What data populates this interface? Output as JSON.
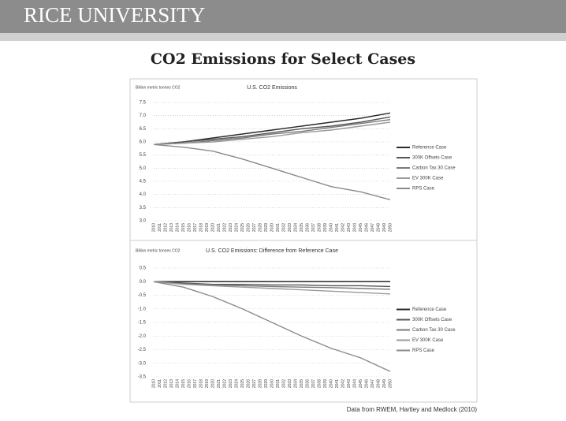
{
  "header": {
    "title": "RICE UNIVERSITY"
  },
  "title": "CO2 Emissions for Select Cases",
  "source": "Data from RWEM, Hartley and Medlock (2010)",
  "chart_data": [
    {
      "type": "line",
      "title": "U.S. CO2 Emissions",
      "y_label": "Billion metric tonnes CO2",
      "x": [
        2010,
        2015,
        2020,
        2025,
        2030,
        2035,
        2040,
        2045,
        2050
      ],
      "xlim": [
        2010,
        2050
      ],
      "xticks": [
        2010,
        2011,
        2012,
        2013,
        2014,
        2015,
        2016,
        2017,
        2018,
        2019,
        2020,
        2021,
        2022,
        2023,
        2024,
        2025,
        2026,
        2027,
        2028,
        2029,
        2030,
        2031,
        2032,
        2033,
        2034,
        2035,
        2036,
        2037,
        2038,
        2039,
        2040,
        2041,
        2042,
        2043,
        2044,
        2045,
        2046,
        2047,
        2048,
        2049,
        2050
      ],
      "ylim": [
        3.0,
        7.5
      ],
      "yticks": [
        {
          "value": 3,
          "label": "3.0"
        },
        3.5,
        {
          "value": 4,
          "label": "4.0"
        },
        4.5,
        {
          "value": 5,
          "label": "5.0"
        },
        5.5,
        {
          "value": 6,
          "label": "6.0"
        },
        6.5,
        {
          "value": 7,
          "label": "7.0"
        },
        7.5
      ],
      "grid": true,
      "series": [
        {
          "name": "Reference Case",
          "color": "#2b2b2b",
          "values": [
            5.9,
            6.0,
            6.15,
            6.3,
            6.45,
            6.6,
            6.75,
            6.9,
            7.1
          ]
        },
        {
          "name": "300K Offsets Case",
          "color": "#555555",
          "values": [
            5.9,
            6.0,
            6.1,
            6.2,
            6.35,
            6.5,
            6.6,
            6.75,
            6.95
          ]
        },
        {
          "name": "Carbon Tax 30 Case",
          "color": "#7a7a7a",
          "values": [
            5.9,
            5.95,
            6.05,
            6.15,
            6.3,
            6.4,
            6.55,
            6.7,
            6.85
          ]
        },
        {
          "name": "EV 300K Case",
          "color": "#9a9a9a",
          "values": [
            5.9,
            5.95,
            6.0,
            6.1,
            6.2,
            6.35,
            6.45,
            6.6,
            6.75
          ]
        },
        {
          "name": "RPS Case",
          "color": "#8a8a8a",
          "values": [
            5.9,
            5.8,
            5.65,
            5.35,
            5.0,
            4.65,
            4.3,
            4.1,
            3.8
          ]
        }
      ]
    },
    {
      "type": "line",
      "title": "U.S. CO2 Emissions: Difference from Reference Case",
      "y_label": "Billion metric tonnes CO2",
      "x": [
        2010,
        2015,
        2020,
        2025,
        2030,
        2035,
        2040,
        2045,
        2050
      ],
      "xlim": [
        2010,
        2050
      ],
      "xticks": [
        2010,
        2011,
        2012,
        2013,
        2014,
        2015,
        2016,
        2017,
        2018,
        2019,
        2020,
        2021,
        2022,
        2023,
        2024,
        2025,
        2026,
        2027,
        2028,
        2029,
        2030,
        2031,
        2032,
        2033,
        2034,
        2035,
        2036,
        2037,
        2038,
        2039,
        2040,
        2041,
        2042,
        2043,
        2044,
        2045,
        2046,
        2047,
        2048,
        2049,
        2050
      ],
      "ylim": [
        -3.5,
        0.5
      ],
      "yticks": [
        -3.5,
        {
          "value": -3,
          "label": "-3.0"
        },
        -2.5,
        {
          "value": -2,
          "label": "-2.0"
        },
        -1.5,
        {
          "value": -1,
          "label": "-1.0"
        },
        -0.5,
        {
          "value": 0,
          "label": "0.0"
        },
        0.5
      ],
      "grid": true,
      "series": [
        {
          "name": "Reference Case",
          "color": "#2b2b2b",
          "values": [
            0,
            0,
            0,
            0,
            0,
            0,
            0,
            0,
            0
          ]
        },
        {
          "name": "300K Offsets Case",
          "color": "#555555",
          "values": [
            0,
            -0.05,
            -0.1,
            -0.1,
            -0.12,
            -0.12,
            -0.15,
            -0.15,
            -0.18
          ]
        },
        {
          "name": "Carbon Tax 30 Case",
          "color": "#7a7a7a",
          "values": [
            0,
            -0.08,
            -0.12,
            -0.15,
            -0.18,
            -0.2,
            -0.22,
            -0.25,
            -0.28
          ]
        },
        {
          "name": "EV 300K Case",
          "color": "#9a9a9a",
          "values": [
            0,
            -0.1,
            -0.15,
            -0.2,
            -0.25,
            -0.3,
            -0.35,
            -0.4,
            -0.45
          ]
        },
        {
          "name": "RPS Case",
          "color": "#8a8a8a",
          "values": [
            0,
            -0.2,
            -0.55,
            -1.0,
            -1.5,
            -2.0,
            -2.45,
            -2.8,
            -3.3
          ]
        }
      ]
    }
  ]
}
